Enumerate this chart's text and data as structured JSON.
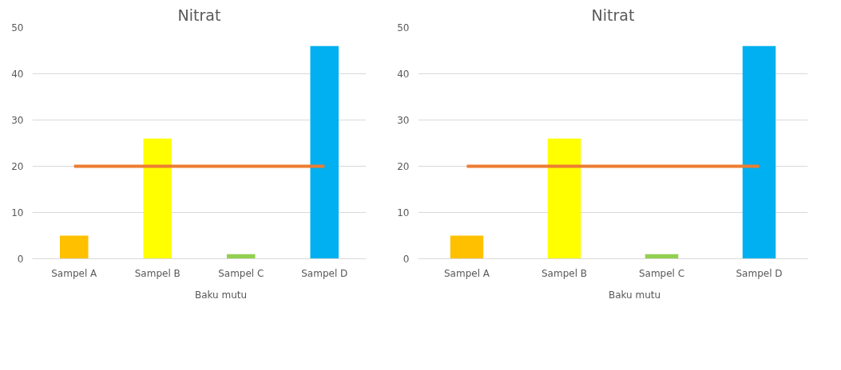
{
  "chart_data": [
    {
      "type": "bar",
      "title": "Nitrat",
      "categories": [
        "Sampel A",
        "Sampel B",
        "Sampel C",
        "Sampel D"
      ],
      "ylim": [
        0,
        50
      ],
      "yticks": [
        0,
        10,
        20,
        30,
        40,
        50
      ],
      "grid": "y",
      "legend": "bottom",
      "series": [
        {
          "colors": [
            "#ffc000",
            "#ffff00",
            "#92d050",
            "#00b0f0"
          ],
          "values": [
            5,
            26,
            1,
            46
          ]
        },
        {
          "type": "line",
          "name": "Baku mutu",
          "color": "#ed7d31",
          "values": [
            20,
            20,
            20,
            20
          ]
        }
      ]
    },
    {
      "type": "bar",
      "title": "Nitrat",
      "categories": [
        "Sampel A",
        "Sampel B",
        "Sampel C",
        "Sampel D"
      ],
      "ylim": [
        0,
        50
      ],
      "yticks": [
        0,
        10,
        20,
        30,
        40,
        50
      ],
      "grid": "y",
      "legend": "bottom",
      "series": [
        {
          "colors": [
            "#ffc000",
            "#ffff00",
            "#92d050",
            "#00b0f0"
          ],
          "values": [
            5,
            26,
            1,
            46
          ]
        },
        {
          "type": "line",
          "name": "Baku mutu",
          "color": "#ed7d31",
          "values": [
            20,
            20,
            20,
            20
          ]
        }
      ]
    }
  ]
}
